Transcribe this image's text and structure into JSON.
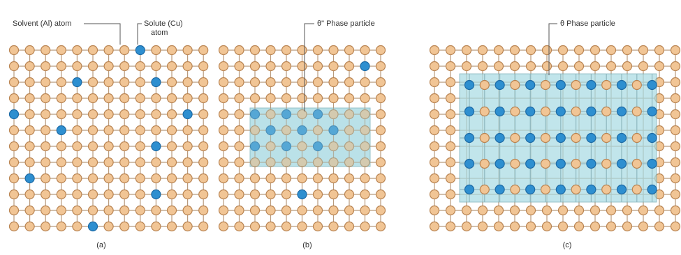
{
  "callouts": {
    "solvent": "Solvent (Al) atom",
    "solute": [
      "Solute (Cu)",
      "atom"
    ],
    "theta_double_prime": "θ\" Phase particle",
    "theta": "θ Phase particle"
  },
  "panels": [
    {
      "label": "(a)"
    },
    {
      "label": "(b)"
    },
    {
      "label": "(c)"
    }
  ]
}
